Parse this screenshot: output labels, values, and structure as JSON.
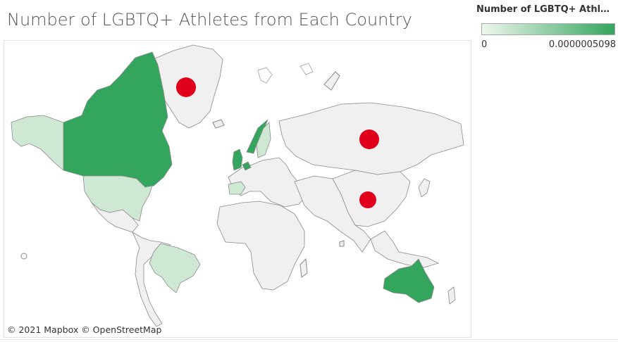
{
  "title": "Number of LGBTQ+ Athletes from Each Country",
  "legend": {
    "title": "Number of LGBTQ+ Athlet...",
    "min_label": "0",
    "max_label": "0.0000005098",
    "color_low": "#eef7ee",
    "color_high": "#33a55d"
  },
  "attribution": "© 2021 Mapbox  © OpenStreetMap",
  "colors": {
    "no_data": "#f0f0f0",
    "border": "#8a8a8a",
    "marker": "#e0001b"
  },
  "countries": [
    {
      "name": "Greenland",
      "shade": "none"
    },
    {
      "name": "Canada",
      "shade": "high"
    },
    {
      "name": "Alaska",
      "shade": "light"
    },
    {
      "name": "United States",
      "shade": "light"
    },
    {
      "name": "Mexico",
      "shade": "none"
    },
    {
      "name": "Brazil",
      "shade": "light"
    },
    {
      "name": "Russia",
      "shade": "none"
    },
    {
      "name": "China",
      "shade": "none"
    },
    {
      "name": "Australia",
      "shade": "high"
    },
    {
      "name": "United Kingdom",
      "shade": "high"
    },
    {
      "name": "Norway",
      "shade": "high"
    },
    {
      "name": "Sweden",
      "shade": "light"
    },
    {
      "name": "Spain",
      "shade": "light"
    },
    {
      "name": "Netherlands",
      "shade": "high"
    }
  ],
  "markers": [
    {
      "name": "Greenland"
    },
    {
      "name": "Russia"
    },
    {
      "name": "China"
    }
  ]
}
